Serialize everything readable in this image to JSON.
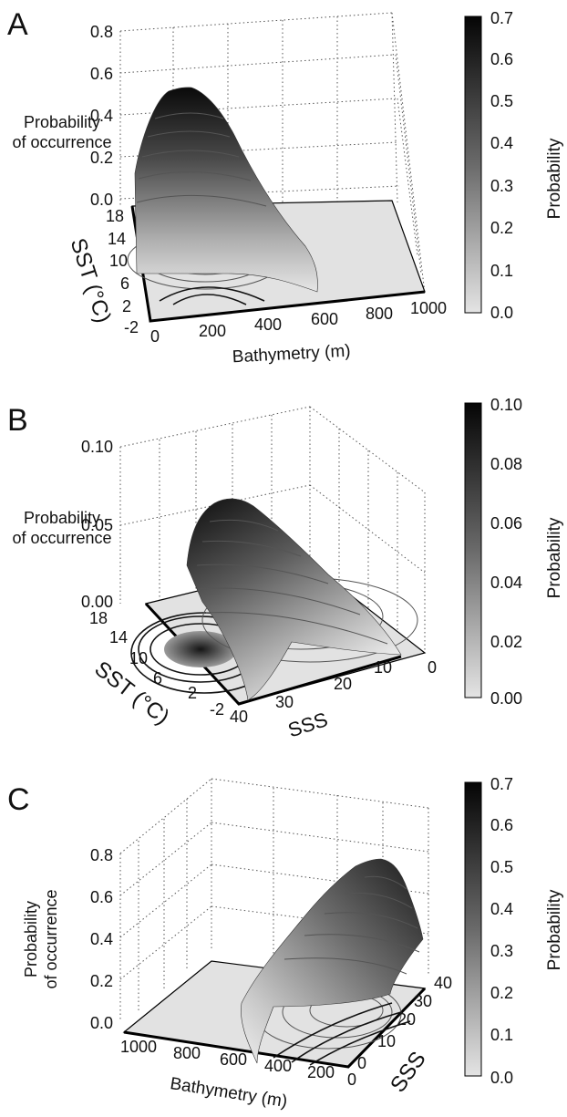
{
  "chart_data": [
    {
      "panel": "A",
      "type": "surface",
      "zlabel": "Probability\nof occurrence",
      "xlabel": "Bathymetry (m)",
      "ylabel": "SST (°C)",
      "x_ticks": [
        "0",
        "200",
        "400",
        "600",
        "800",
        "1000"
      ],
      "y_ticks": [
        "-2",
        "2",
        "6",
        "10",
        "14",
        "18"
      ],
      "z_ticks": [
        "0.0",
        "0.2",
        "0.4",
        "0.6",
        "0.8"
      ],
      "colorbar": {
        "label": "Probability",
        "ticks": [
          "0.0",
          "0.1",
          "0.2",
          "0.3",
          "0.4",
          "0.5",
          "0.6",
          "0.7"
        ],
        "range": [
          0,
          0.7
        ]
      },
      "peak": {
        "x": 200,
        "y": 10,
        "z": 0.52
      }
    },
    {
      "panel": "B",
      "type": "surface",
      "zlabel": "Probability\nof occurrence",
      "xlabel": "SSS",
      "ylabel": "SST (°C)",
      "x_ticks": [
        "40",
        "30",
        "20",
        "10",
        "0"
      ],
      "y_ticks": [
        "-2",
        "2",
        "6",
        "10",
        "14",
        "18"
      ],
      "z_ticks": [
        "0.00",
        "0.05",
        "0.10"
      ],
      "colorbar": {
        "label": "Probability",
        "ticks": [
          "0.00",
          "0.02",
          "0.04",
          "0.06",
          "0.08",
          "0.10"
        ],
        "range": [
          0,
          0.1
        ]
      },
      "peak": {
        "x": 33,
        "y": 10,
        "z": 0.07
      }
    },
    {
      "panel": "C",
      "type": "surface",
      "zlabel": "Probability\nof occurrence",
      "xlabel": "Bathymetry (m)",
      "ylabel": "SSS",
      "x_ticks": [
        "1000",
        "800",
        "600",
        "400",
        "200",
        "0"
      ],
      "y_ticks": [
        "0",
        "10",
        "20",
        "30",
        "40"
      ],
      "z_ticks": [
        "0.0",
        "0.2",
        "0.4",
        "0.6",
        "0.8"
      ],
      "colorbar": {
        "label": "Probability",
        "ticks": [
          "0.0",
          "0.1",
          "0.2",
          "0.3",
          "0.4",
          "0.5",
          "0.6",
          "0.7"
        ],
        "range": [
          0,
          0.7
        ]
      },
      "peak": {
        "x": 200,
        "y": 33,
        "z": 0.6
      }
    }
  ]
}
